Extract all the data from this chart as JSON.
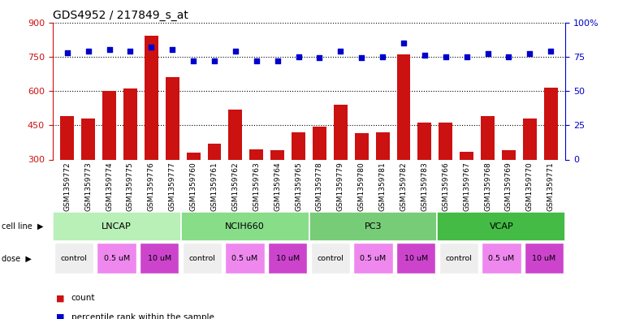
{
  "title": "GDS4952 / 217849_s_at",
  "samples": [
    "GSM1359772",
    "GSM1359773",
    "GSM1359774",
    "GSM1359775",
    "GSM1359776",
    "GSM1359777",
    "GSM1359760",
    "GSM1359761",
    "GSM1359762",
    "GSM1359763",
    "GSM1359764",
    "GSM1359765",
    "GSM1359778",
    "GSM1359779",
    "GSM1359780",
    "GSM1359781",
    "GSM1359782",
    "GSM1359783",
    "GSM1359766",
    "GSM1359767",
    "GSM1359768",
    "GSM1359769",
    "GSM1359770",
    "GSM1359771"
  ],
  "counts": [
    490,
    480,
    600,
    610,
    840,
    660,
    330,
    370,
    520,
    345,
    340,
    420,
    445,
    540,
    415,
    420,
    760,
    460,
    460,
    335,
    490,
    340,
    480,
    615
  ],
  "percentile": [
    78,
    79,
    80,
    79,
    82,
    80,
    72,
    72,
    79,
    72,
    72,
    75,
    74,
    79,
    74,
    75,
    85,
    76,
    75,
    75,
    77,
    75,
    77,
    79
  ],
  "cell_lines": [
    {
      "name": "LNCAP",
      "start": 0,
      "end": 6,
      "color": "#b8f0b8"
    },
    {
      "name": "NCIH660",
      "start": 6,
      "end": 12,
      "color": "#88dd88"
    },
    {
      "name": "PC3",
      "start": 12,
      "end": 18,
      "color": "#77cc77"
    },
    {
      "name": "VCAP",
      "start": 18,
      "end": 24,
      "color": "#44bb44"
    }
  ],
  "doses": [
    {
      "label": "control",
      "start": 0,
      "end": 2,
      "color": "#eeeeee"
    },
    {
      "label": "0.5 uM",
      "start": 2,
      "end": 4,
      "color": "#ee88ee"
    },
    {
      "label": "10 uM",
      "start": 4,
      "end": 6,
      "color": "#cc44cc"
    },
    {
      "label": "control",
      "start": 6,
      "end": 8,
      "color": "#eeeeee"
    },
    {
      "label": "0.5 uM",
      "start": 8,
      "end": 10,
      "color": "#ee88ee"
    },
    {
      "label": "10 uM",
      "start": 10,
      "end": 12,
      "color": "#cc44cc"
    },
    {
      "label": "control",
      "start": 12,
      "end": 14,
      "color": "#eeeeee"
    },
    {
      "label": "0.5 uM",
      "start": 14,
      "end": 16,
      "color": "#ee88ee"
    },
    {
      "label": "10 uM",
      "start": 16,
      "end": 18,
      "color": "#cc44cc"
    },
    {
      "label": "control",
      "start": 18,
      "end": 20,
      "color": "#eeeeee"
    },
    {
      "label": "0.5 uM",
      "start": 20,
      "end": 22,
      "color": "#ee88ee"
    },
    {
      "label": "10 uM",
      "start": 22,
      "end": 24,
      "color": "#cc44cc"
    }
  ],
  "ylim_left": [
    300,
    900
  ],
  "yticks_left": [
    300,
    450,
    600,
    750,
    900
  ],
  "ylim_right": [
    0,
    100
  ],
  "yticks_right": [
    0,
    25,
    50,
    75,
    100
  ],
  "bar_color": "#cc1111",
  "dot_color": "#0000cc",
  "background_color": "#ffffff",
  "title_fontsize": 10,
  "axis_fontsize": 8,
  "tick_fontsize": 6.5
}
